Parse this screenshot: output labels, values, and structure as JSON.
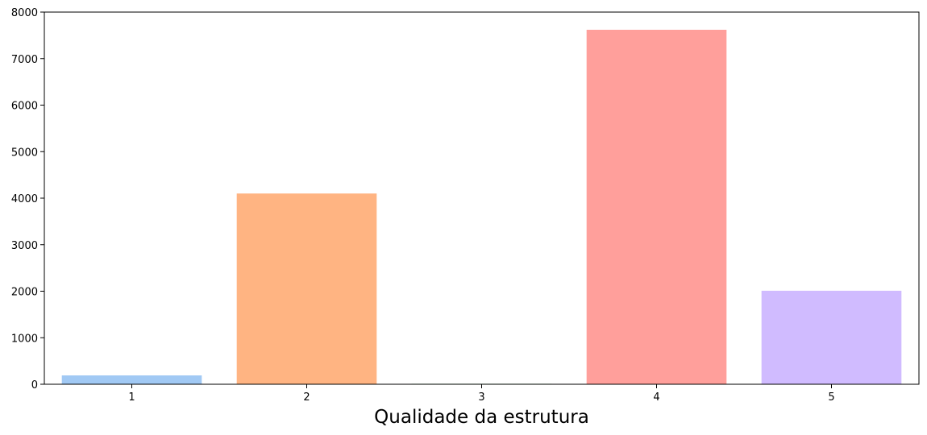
{
  "chart_data": {
    "type": "bar",
    "xlabel": "Qualidade da estrutura",
    "ylabel": "",
    "categories": [
      "1",
      "2",
      "3",
      "4",
      "5"
    ],
    "values": [
      190,
      4100,
      10,
      7620,
      2010
    ],
    "ylim": [
      0,
      8000
    ],
    "yticks": [
      0,
      1000,
      2000,
      3000,
      4000,
      5000,
      6000,
      7000,
      8000
    ],
    "bar_colors": [
      "#a1c9f4",
      "#ffb482",
      "#8de5a1",
      "#ff9f9b",
      "#d0bbff"
    ],
    "grid": false,
    "legend": "none"
  }
}
